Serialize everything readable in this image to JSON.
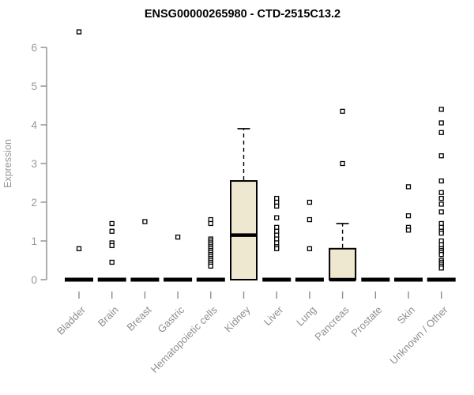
{
  "chart_data": {
    "type": "boxplot",
    "title": "ENSG00000265980 - CTD-2515C13.2",
    "ylabel": "Expression",
    "xlabel": "",
    "ylim": [
      0,
      6
    ],
    "yticks": [
      "0",
      "1",
      "2",
      "3",
      "4",
      "5",
      "6"
    ],
    "grid": false,
    "legend": "none",
    "categories": [
      "Bladder",
      "Brain",
      "Breast",
      "Gastric",
      "Hematopoietic cells",
      "Kidney",
      "Liver",
      "Lung",
      "Pancreas",
      "Prostate",
      "Skin",
      "Unknown / Other"
    ],
    "boxes": [
      {
        "category": "Bladder",
        "q1": 0,
        "median": 0,
        "q3": 0,
        "whisker_low": 0,
        "whisker_high": 0,
        "points": [
          6.4,
          0.8
        ]
      },
      {
        "category": "Brain",
        "q1": 0,
        "median": 0,
        "q3": 0,
        "whisker_low": 0,
        "whisker_high": 0,
        "points": [
          1.45,
          1.25,
          0.95,
          0.88,
          0.45
        ]
      },
      {
        "category": "Breast",
        "q1": 0,
        "median": 0,
        "q3": 0,
        "whisker_low": 0,
        "whisker_high": 0,
        "points": [
          1.5
        ]
      },
      {
        "category": "Gastric",
        "q1": 0,
        "median": 0,
        "q3": 0,
        "whisker_low": 0,
        "whisker_high": 0,
        "points": [
          1.1
        ]
      },
      {
        "category": "Hematopoietic cells",
        "q1": 0,
        "median": 0,
        "q3": 0,
        "whisker_low": 0,
        "whisker_high": 0,
        "points": [
          1.55,
          1.45,
          1.05,
          1.0,
          0.95,
          0.9,
          0.85,
          0.8,
          0.75,
          0.7,
          0.65,
          0.6,
          0.55,
          0.5,
          0.45,
          0.4,
          0.35
        ]
      },
      {
        "category": "Kidney",
        "q1": 0,
        "median": 1.15,
        "q3": 2.55,
        "whisker_low": 0,
        "whisker_high": 3.9,
        "points": []
      },
      {
        "category": "Liver",
        "q1": 0,
        "median": 0,
        "q3": 0,
        "whisker_low": 0,
        "whisker_high": 0,
        "points": [
          2.1,
          2.0,
          1.9,
          1.6,
          1.35,
          1.25,
          1.15,
          1.05,
          0.95,
          0.85,
          0.8
        ]
      },
      {
        "category": "Lung",
        "q1": 0,
        "median": 0,
        "q3": 0,
        "whisker_low": 0,
        "whisker_high": 0,
        "points": [
          2.0,
          1.55,
          0.8
        ]
      },
      {
        "category": "Pancreas",
        "q1": 0,
        "median": 0,
        "q3": 0.8,
        "whisker_low": 0,
        "whisker_high": 1.45,
        "points": [
          4.35,
          3.0
        ]
      },
      {
        "category": "Prostate",
        "q1": 0,
        "median": 0,
        "q3": 0,
        "whisker_low": 0,
        "whisker_high": 0,
        "points": []
      },
      {
        "category": "Skin",
        "q1": 0,
        "median": 0,
        "q3": 0,
        "whisker_low": 0,
        "whisker_high": 0,
        "points": [
          2.4,
          1.65,
          1.35,
          1.28
        ]
      },
      {
        "category": "Unknown / Other",
        "q1": 0,
        "median": 0,
        "q3": 0,
        "whisker_low": 0,
        "whisker_high": 0,
        "points": [
          4.4,
          4.05,
          3.8,
          3.2,
          2.55,
          2.25,
          2.1,
          1.95,
          1.75,
          1.45,
          1.35,
          1.25,
          1.2,
          1.0,
          0.9,
          0.8,
          0.75,
          0.7,
          0.65,
          0.5,
          0.45,
          0.4,
          0.35,
          0.3
        ]
      }
    ],
    "colors": {
      "box_fill": "#EEE8D1",
      "box_stroke": "#000000",
      "median": "#000000",
      "flat_box": "#000000",
      "point_stroke": "#000000",
      "point_fill": "#ffffff",
      "axis": "#8c8c8c",
      "tick_text": "#979797",
      "title_text": "#000000",
      "background": "#ffffff"
    }
  }
}
